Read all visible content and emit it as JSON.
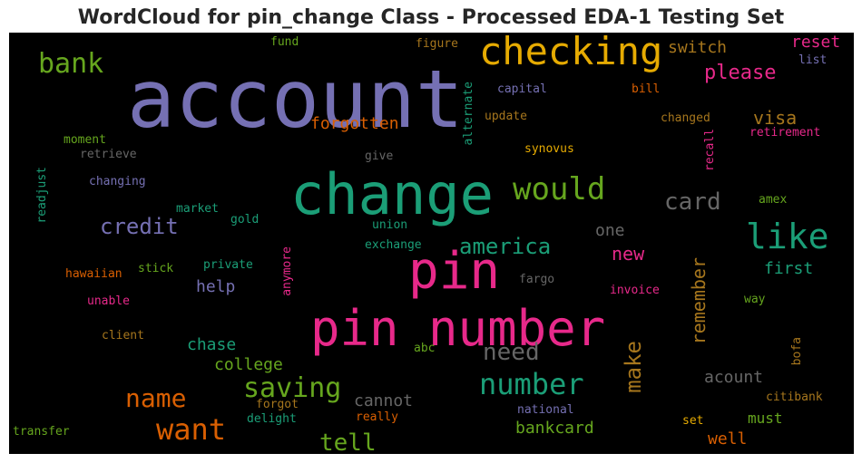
{
  "title": "WordCloud for pin_change Class - Processed EDA-1 Testing Set",
  "words": [
    {
      "text": "account",
      "color": "#7570b3"
    },
    {
      "text": "checking",
      "color": "#e6ab02"
    },
    {
      "text": "change",
      "color": "#1b9e77"
    },
    {
      "text": "pin number",
      "color": "#e7298a"
    },
    {
      "text": "pin",
      "color": "#e7298a"
    },
    {
      "text": "bank",
      "color": "#66a61e"
    },
    {
      "text": "would",
      "color": "#66a61e"
    },
    {
      "text": "like",
      "color": "#1b9e77"
    },
    {
      "text": "card",
      "color": "#666666"
    },
    {
      "text": "credit",
      "color": "#7570b3"
    },
    {
      "text": "america",
      "color": "#1b9e77"
    },
    {
      "text": "saving",
      "color": "#66a61e"
    },
    {
      "text": "number",
      "color": "#1b9e77"
    },
    {
      "text": "name",
      "color": "#d95f02"
    },
    {
      "text": "want",
      "color": "#d95f02"
    },
    {
      "text": "tell",
      "color": "#66a61e"
    },
    {
      "text": "need",
      "color": "#666666"
    },
    {
      "text": "please",
      "color": "#e7298a"
    },
    {
      "text": "switch",
      "color": "#a6761d"
    },
    {
      "text": "reset",
      "color": "#e7298a"
    },
    {
      "text": "forgotten",
      "color": "#d95f02"
    },
    {
      "text": "visa",
      "color": "#a6761d"
    },
    {
      "text": "fund",
      "color": "#66a61e"
    },
    {
      "text": "figure",
      "color": "#a6761d"
    },
    {
      "text": "list",
      "color": "#7570b3"
    },
    {
      "text": "capital",
      "color": "#7570b3"
    },
    {
      "text": "bill",
      "color": "#d95f02"
    },
    {
      "text": "update",
      "color": "#a6761d"
    },
    {
      "text": "changed",
      "color": "#a6761d"
    },
    {
      "text": "retirement",
      "color": "#e7298a"
    },
    {
      "text": "moment",
      "color": "#66a61e"
    },
    {
      "text": "retrieve",
      "color": "#666666"
    },
    {
      "text": "give",
      "color": "#666666"
    },
    {
      "text": "synovus",
      "color": "#e6ab02"
    },
    {
      "text": "changing",
      "color": "#7570b3"
    },
    {
      "text": "amex",
      "color": "#66a61e"
    },
    {
      "text": "market",
      "color": "#1b9e77"
    },
    {
      "text": "gold",
      "color": "#1b9e77"
    },
    {
      "text": "union",
      "color": "#1b9e77"
    },
    {
      "text": "one",
      "color": "#666666"
    },
    {
      "text": "new",
      "color": "#e7298a"
    },
    {
      "text": "exchange",
      "color": "#1b9e77"
    },
    {
      "text": "first",
      "color": "#1b9e77"
    },
    {
      "text": "hawaiian",
      "color": "#d95f02"
    },
    {
      "text": "stick",
      "color": "#66a61e"
    },
    {
      "text": "private",
      "color": "#1b9e77"
    },
    {
      "text": "fargo",
      "color": "#666666"
    },
    {
      "text": "help",
      "color": "#7570b3"
    },
    {
      "text": "invoice",
      "color": "#e7298a"
    },
    {
      "text": "unable",
      "color": "#e7298a"
    },
    {
      "text": "way",
      "color": "#66a61e"
    },
    {
      "text": "client",
      "color": "#a6761d"
    },
    {
      "text": "chase",
      "color": "#1b9e77"
    },
    {
      "text": "abc",
      "color": "#66a61e"
    },
    {
      "text": "college",
      "color": "#66a61e"
    },
    {
      "text": "acount",
      "color": "#666666"
    },
    {
      "text": "cannot",
      "color": "#666666"
    },
    {
      "text": "citibank",
      "color": "#a6761d"
    },
    {
      "text": "forgot",
      "color": "#a6761d"
    },
    {
      "text": "national",
      "color": "#7570b3"
    },
    {
      "text": "must",
      "color": "#66a61e"
    },
    {
      "text": "delight",
      "color": "#1b9e77"
    },
    {
      "text": "really",
      "color": "#d95f02"
    },
    {
      "text": "bankcard",
      "color": "#66a61e"
    },
    {
      "text": "set",
      "color": "#e6ab02"
    },
    {
      "text": "transfer",
      "color": "#66a61e"
    },
    {
      "text": "well",
      "color": "#d95f02"
    },
    {
      "text": "alternate",
      "color": "#1b9e77"
    },
    {
      "text": "recall",
      "color": "#e7298a"
    },
    {
      "text": "readjust",
      "color": "#1b9e77"
    },
    {
      "text": "anymore",
      "color": "#e7298a"
    },
    {
      "text": "make",
      "color": "#a6761d"
    },
    {
      "text": "remember",
      "color": "#a6761d"
    },
    {
      "text": "bofa",
      "color": "#a6761d"
    }
  ]
}
